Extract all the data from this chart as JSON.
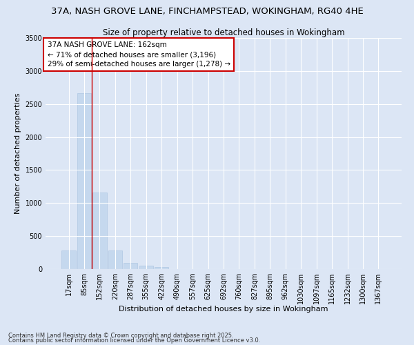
{
  "title1": "37A, NASH GROVE LANE, FINCHAMPSTEAD, WOKINGHAM, RG40 4HE",
  "title2": "Size of property relative to detached houses in Wokingham",
  "xlabel": "Distribution of detached houses by size in Wokingham",
  "ylabel": "Number of detached properties",
  "categories": [
    "17sqm",
    "85sqm",
    "152sqm",
    "220sqm",
    "287sqm",
    "355sqm",
    "422sqm",
    "490sqm",
    "557sqm",
    "625sqm",
    "692sqm",
    "760sqm",
    "827sqm",
    "895sqm",
    "962sqm",
    "1030sqm",
    "1097sqm",
    "1165sqm",
    "1232sqm",
    "1300sqm",
    "1367sqm"
  ],
  "values": [
    285,
    2660,
    1160,
    285,
    95,
    50,
    30,
    0,
    0,
    0,
    0,
    0,
    0,
    0,
    0,
    0,
    0,
    0,
    0,
    0,
    0
  ],
  "bar_color": "#c5d8ee",
  "bar_edge_color": "#b0c8e4",
  "vline_color": "#cc0000",
  "annotation_text": "37A NASH GROVE LANE: 162sqm\n← 71% of detached houses are smaller (3,196)\n29% of semi-detached houses are larger (1,278) →",
  "annotation_box_color": "#ffffff",
  "annotation_box_edge": "#cc0000",
  "ylim": [
    0,
    3500
  ],
  "yticks": [
    0,
    500,
    1000,
    1500,
    2000,
    2500,
    3000,
    3500
  ],
  "bg_color": "#dce6f5",
  "plot_bg_color": "#dce6f5",
  "grid_color": "#ffffff",
  "footer1": "Contains HM Land Registry data © Crown copyright and database right 2025.",
  "footer2": "Contains public sector information licensed under the Open Government Licence v3.0.",
  "title1_fontsize": 9.5,
  "title2_fontsize": 8.5,
  "xlabel_fontsize": 8,
  "ylabel_fontsize": 8,
  "tick_fontsize": 7,
  "annotation_fontsize": 7.5,
  "footer_fontsize": 6
}
